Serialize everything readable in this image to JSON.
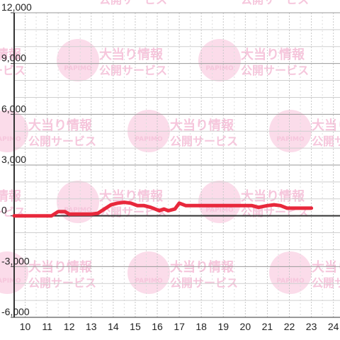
{
  "watermark": {
    "line1": "大当り情報",
    "line2": "公開サービス",
    "logo_text": "PAPIMO",
    "color": "#f7bfd9"
  },
  "chart_data": {
    "type": "line",
    "xlim": [
      9.5,
      24.3
    ],
    "ylim": [
      -6000,
      12000
    ],
    "x_ticks": [
      10,
      11,
      12,
      13,
      14,
      15,
      16,
      17,
      18,
      19,
      20,
      21,
      22,
      23,
      24
    ],
    "x_tick_labels": [
      "10",
      "11",
      "12",
      "13",
      "14",
      "15",
      "16",
      "17",
      "18",
      "19",
      "20",
      "21",
      "22",
      "23",
      "24"
    ],
    "y_ticks": [
      12000,
      9000,
      6000,
      3000,
      0,
      -3000,
      -6000
    ],
    "y_tick_labels": [
      "12,000",
      "9,000",
      "6,000",
      "3,000",
      "0",
      "-3,000",
      "-6,000"
    ],
    "grid": true,
    "line_color": "#e8283c",
    "series": [
      {
        "x": [
          9.5,
          10.5,
          11.2,
          11.5,
          11.8,
          12.0,
          12.5,
          13.0,
          13.3,
          13.6,
          13.9,
          14.2,
          14.5,
          14.8,
          15.1,
          15.4,
          15.7,
          15.9,
          16.1,
          16.3,
          16.5,
          16.8,
          17.0,
          17.3,
          17.6,
          18.0,
          18.5,
          19.0,
          19.5,
          20.0,
          20.3,
          20.6,
          21.0,
          21.3,
          21.6,
          21.9,
          22.2,
          22.6,
          23.0
        ],
        "y": [
          0,
          0,
          0,
          250,
          250,
          100,
          100,
          100,
          150,
          400,
          650,
          750,
          800,
          750,
          600,
          600,
          500,
          400,
          300,
          400,
          300,
          400,
          750,
          600,
          600,
          600,
          600,
          600,
          600,
          600,
          600,
          500,
          600,
          650,
          600,
          450,
          450,
          450,
          450
        ]
      }
    ]
  }
}
